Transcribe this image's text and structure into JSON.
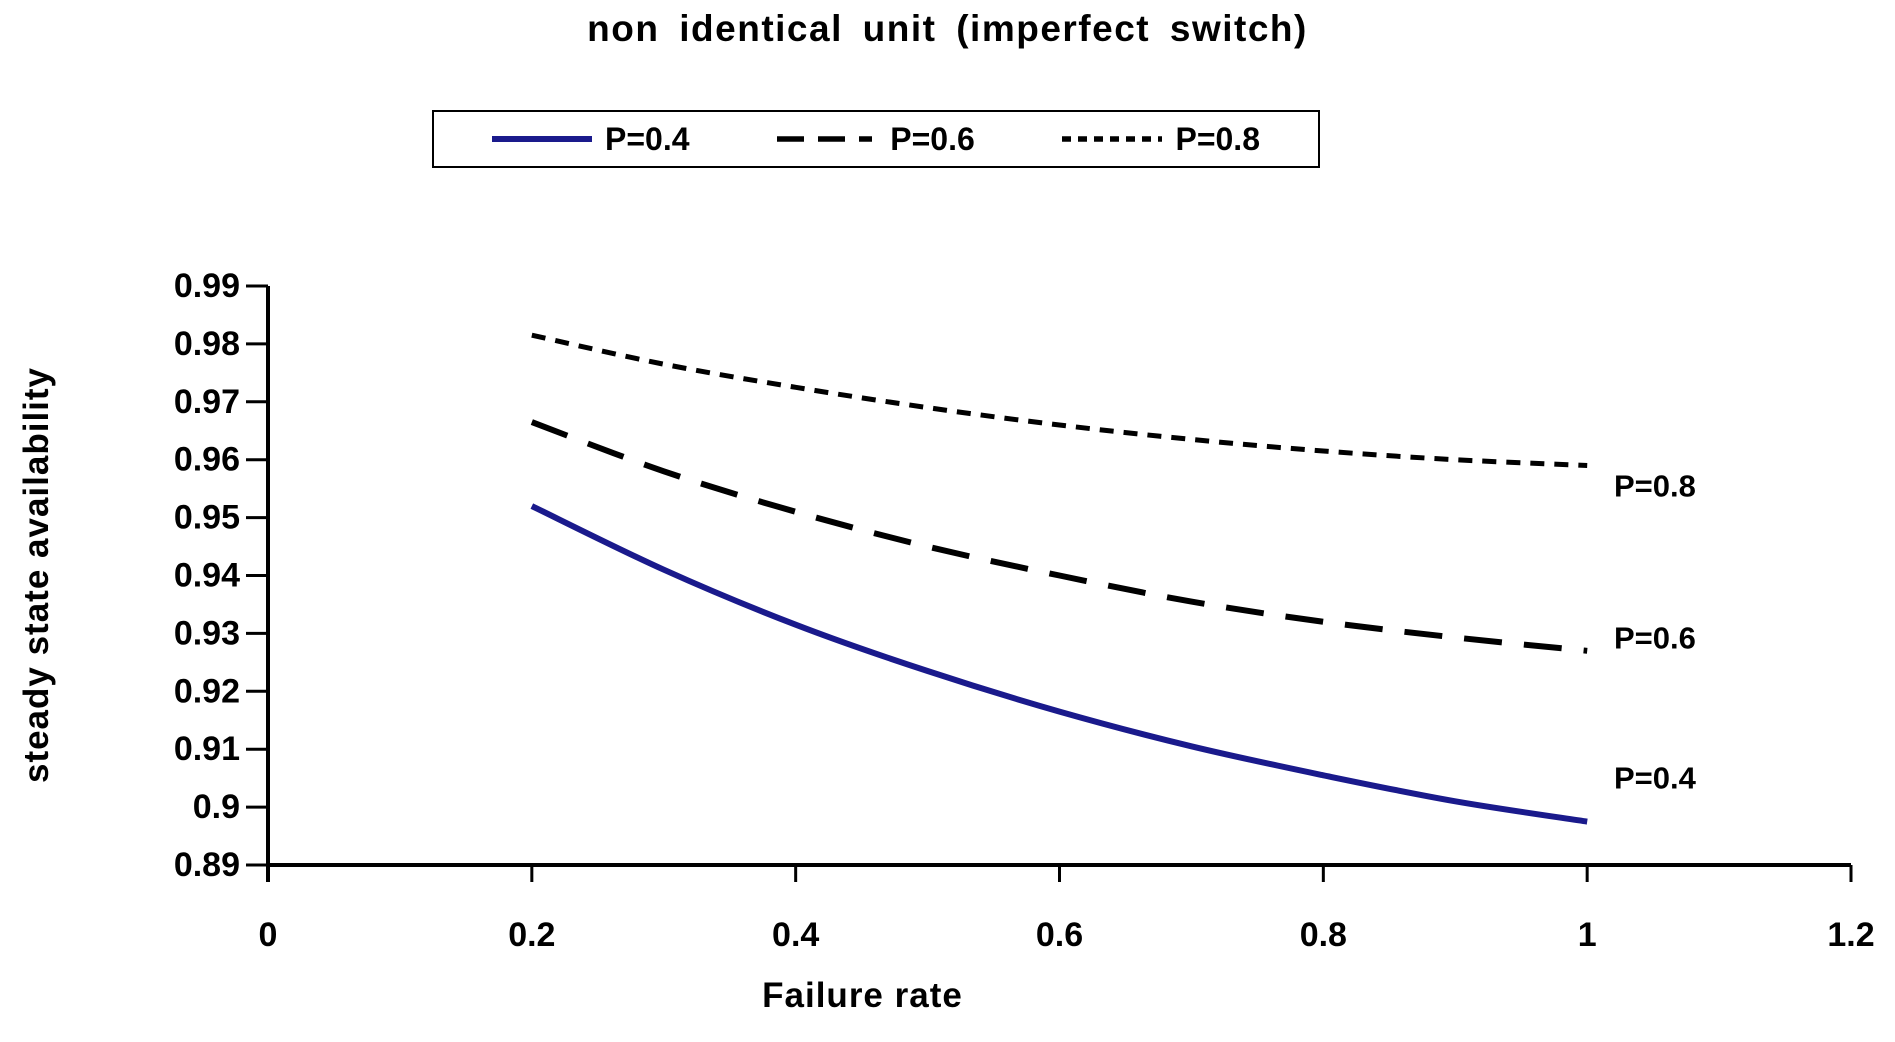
{
  "title": "non identical unit (imperfect switch)",
  "axis": {
    "x_label": "Failure rate",
    "y_label": "steady state availability"
  },
  "legend": {
    "entries": [
      {
        "label": "P=0.4"
      },
      {
        "label": "P=0.6"
      },
      {
        "label": "P=0.8"
      }
    ]
  },
  "colors": {
    "p04_line": "#1a1a8c",
    "p06_line": "#000000",
    "p08_line": "#000000",
    "axis": "#000000",
    "text": "#000000",
    "background": "#ffffff"
  },
  "chart_data": {
    "type": "line",
    "title": "non identical unit (imperfect switch)",
    "xlabel": "Failure rate",
    "ylabel": "steady state availability",
    "xlim": [
      0,
      1.2
    ],
    "ylim": [
      0.89,
      0.99
    ],
    "grid": false,
    "legend_position": "top",
    "x_ticks": [
      0,
      0.2,
      0.4,
      0.6,
      0.8,
      1,
      1.2
    ],
    "x_tick_labels": [
      "0",
      "0.2",
      "0.4",
      "0.6",
      "0.8",
      "1",
      "1.2"
    ],
    "y_ticks": [
      0.89,
      0.9,
      0.91,
      0.92,
      0.93,
      0.94,
      0.95,
      0.96,
      0.97,
      0.98,
      0.99
    ],
    "y_tick_labels": [
      "0.89",
      "0.9",
      "0.91",
      "0.92",
      "0.93",
      "0.94",
      "0.95",
      "0.96",
      "0.97",
      "0.98",
      "0.99"
    ],
    "x": [
      0.2,
      0.3,
      0.4,
      0.5,
      0.6,
      0.7,
      0.8,
      0.9,
      1.0
    ],
    "series": [
      {
        "name": "P=0.4",
        "style": "solid",
        "color": "#1a1a8c",
        "end_label": "P=0.4",
        "values": [
          0.952,
          0.941,
          0.9315,
          0.9235,
          0.9165,
          0.9105,
          0.9055,
          0.901,
          0.8975
        ]
      },
      {
        "name": "P=0.6",
        "style": "dashed",
        "color": "#000000",
        "end_label": "P=0.6",
        "values": [
          0.9665,
          0.958,
          0.951,
          0.945,
          0.94,
          0.9355,
          0.932,
          0.9293,
          0.927
        ]
      },
      {
        "name": "P=0.8",
        "style": "dotted",
        "color": "#000000",
        "end_label": "P=0.8",
        "values": [
          0.9815,
          0.9765,
          0.9725,
          0.969,
          0.966,
          0.9635,
          0.9615,
          0.96,
          0.959
        ]
      }
    ]
  }
}
